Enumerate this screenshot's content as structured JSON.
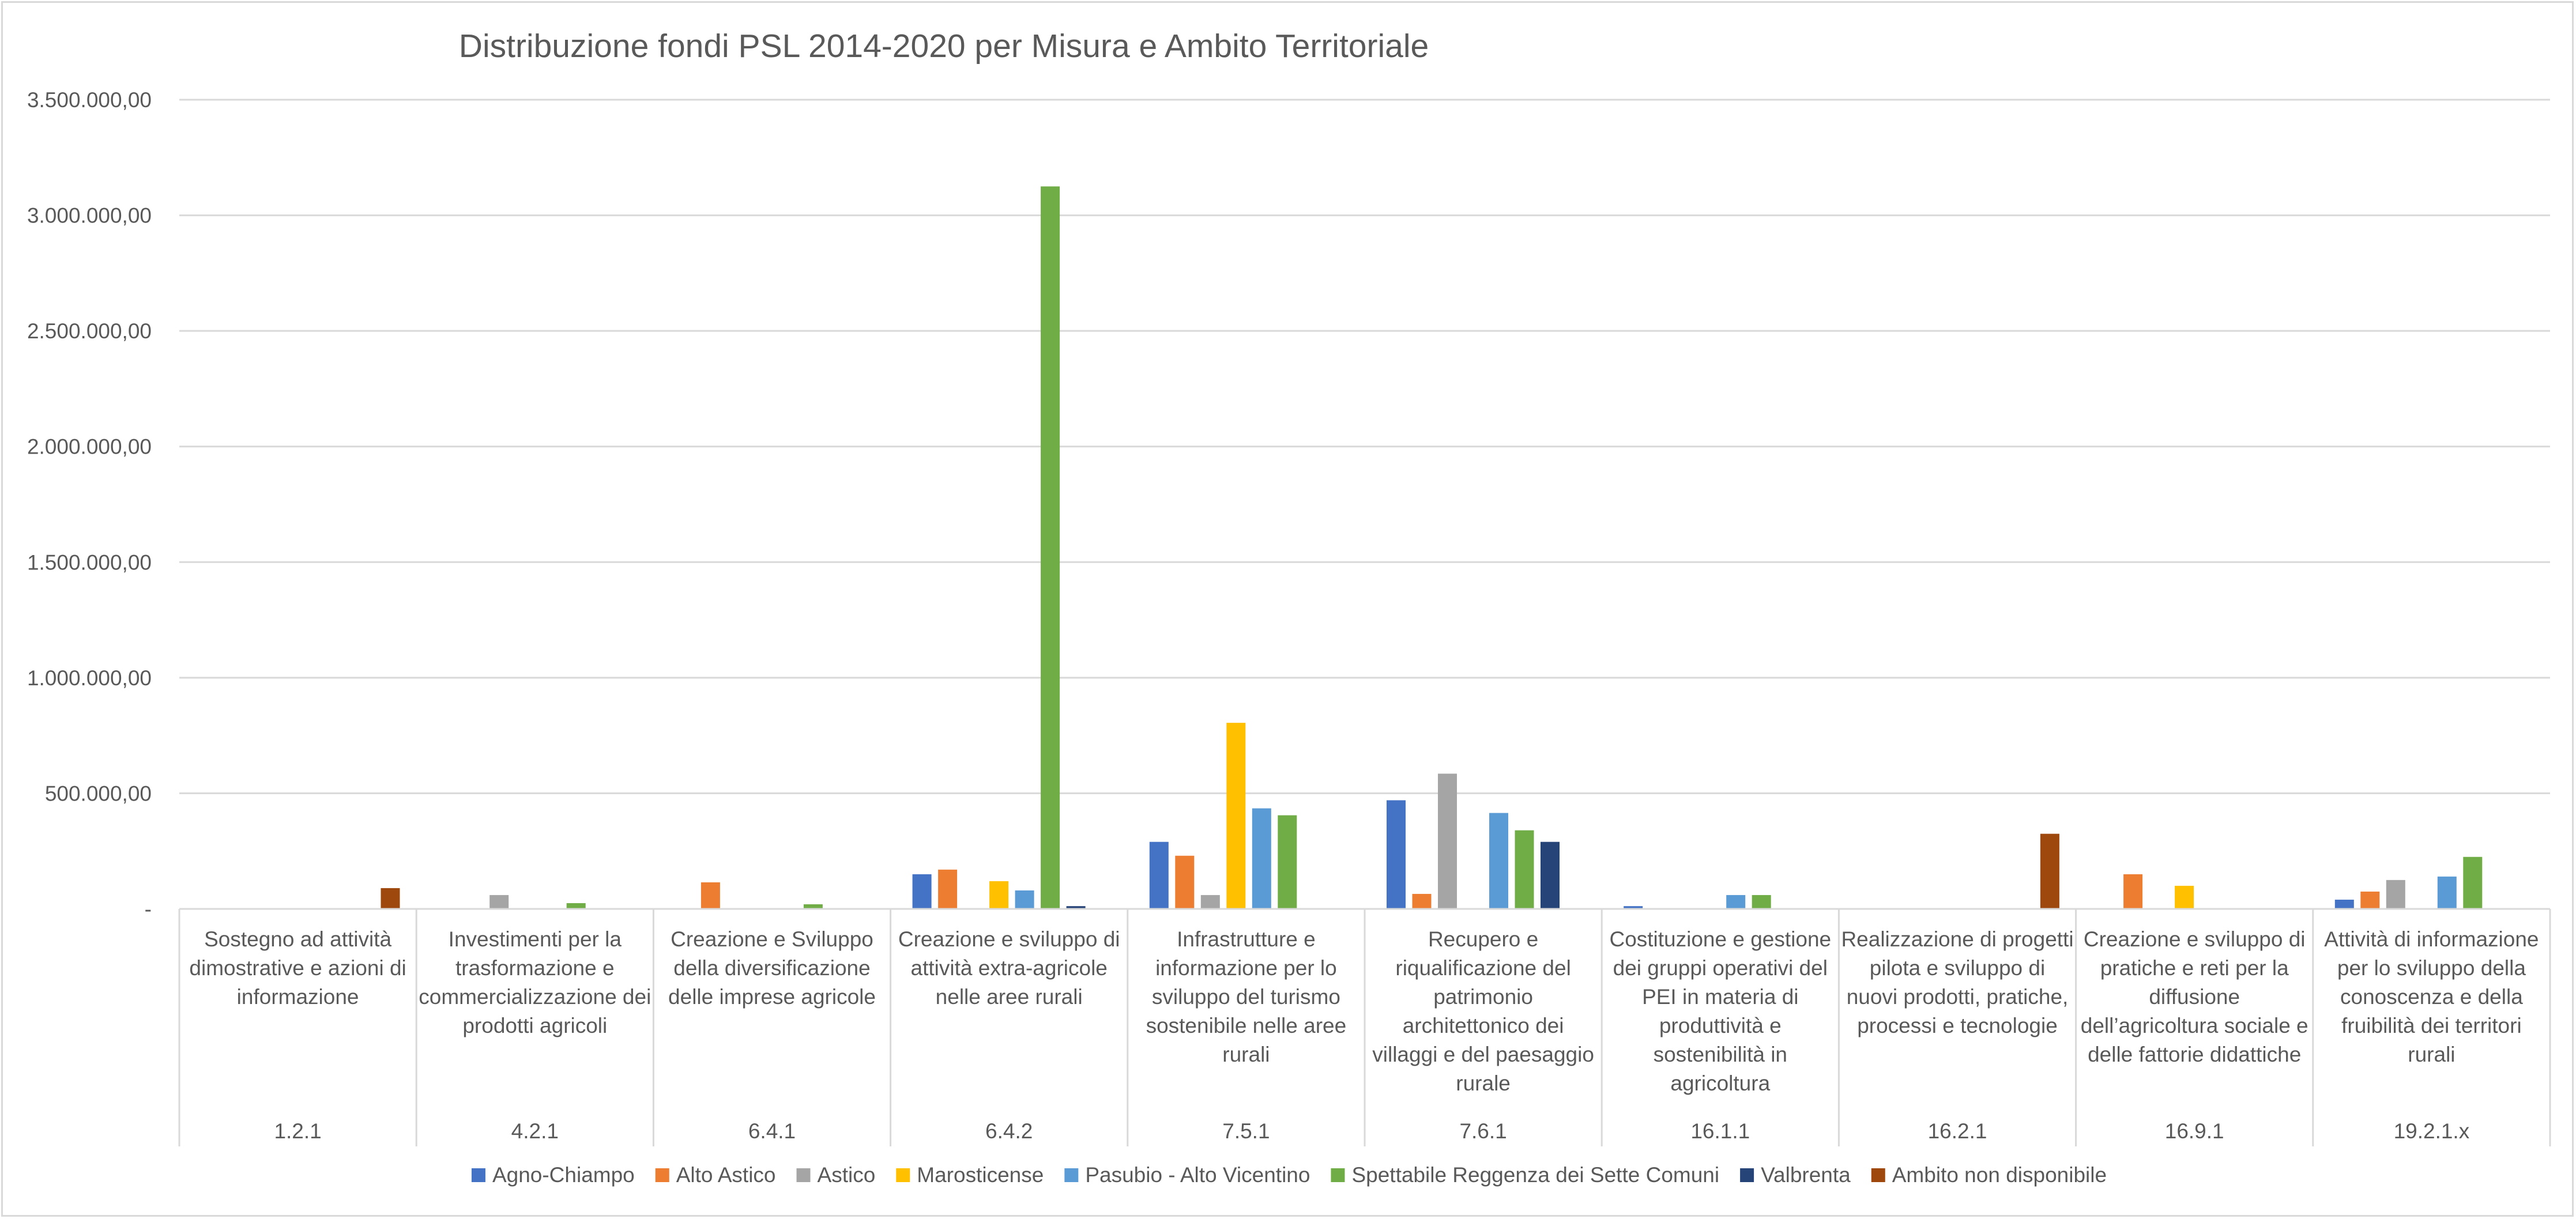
{
  "chart_data": {
    "type": "bar",
    "title": "Distribuzione fondi PSL 2014-2020 per Misura e Ambito Territoriale",
    "xlabel": "",
    "ylabel": "",
    "ylim": [
      0,
      3500000
    ],
    "yticks": [
      0,
      500000,
      1000000,
      1500000,
      2000000,
      2500000,
      3000000,
      3500000
    ],
    "ytick_labels": [
      "-",
      "500.000,00",
      "1.000.000,00",
      "1.500.000,00",
      "2.000.000,00",
      "2.500.000,00",
      "3.000.000,00",
      "3.500.000,00"
    ],
    "grid": true,
    "legend_position": "bottom",
    "categories": [
      {
        "description": [
          "Sostegno ad attività",
          "dimostrative e azioni di",
          "informazione"
        ],
        "code": "1.2.1"
      },
      {
        "description": [
          "Investimenti per la",
          "trasformazione e",
          "commercializzazione dei",
          "prodotti agricoli"
        ],
        "code": "4.2.1"
      },
      {
        "description": [
          "Creazione e Sviluppo",
          "della diversificazione",
          "delle imprese agricole"
        ],
        "code": "6.4.1"
      },
      {
        "description": [
          "Creazione e sviluppo di",
          "attività extra-agricole",
          "nelle aree rurali"
        ],
        "code": "6.4.2"
      },
      {
        "description": [
          "Infrastrutture e",
          "informazione per lo",
          "sviluppo del turismo",
          "sostenibile nelle aree",
          "rurali"
        ],
        "code": "7.5.1"
      },
      {
        "description": [
          "Recupero e",
          "riqualificazione del",
          "patrimonio",
          "architettonico dei",
          "villaggi e del paesaggio",
          "rurale"
        ],
        "code": "7.6.1"
      },
      {
        "description": [
          "Costituzione e gestione",
          "dei gruppi operativi del",
          "PEI in materia di",
          "produttività e",
          "sostenibilità in",
          "agricoltura"
        ],
        "code": "16.1.1"
      },
      {
        "description": [
          "Realizzazione di progetti",
          "pilota e sviluppo di",
          "nuovi prodotti, pratiche,",
          "processi e tecnologie"
        ],
        "code": "16.2.1"
      },
      {
        "description": [
          "Creazione e sviluppo di",
          "pratiche e reti per la",
          "diffusione",
          "dell’agricoltura sociale e",
          "delle fattorie didattiche"
        ],
        "code": "16.9.1"
      },
      {
        "description": [
          "Attività di informazione",
          "per lo sviluppo della",
          "conoscenza e della",
          "fruibilità dei territori",
          "rurali"
        ],
        "code": "19.2.1.x"
      }
    ],
    "series": [
      {
        "name": "Agno-Chiampo",
        "color": "#4472c4",
        "values": [
          0,
          0,
          0,
          150000,
          290000,
          470000,
          12000,
          0,
          0,
          40000
        ]
      },
      {
        "name": "Alto Astico",
        "color": "#ed7d31",
        "values": [
          0,
          0,
          115000,
          170000,
          230000,
          65000,
          0,
          0,
          150000,
          75000
        ]
      },
      {
        "name": "Astico",
        "color": "#a5a5a5",
        "values": [
          0,
          60000,
          0,
          0,
          60000,
          585000,
          0,
          0,
          0,
          125000
        ]
      },
      {
        "name": "Marosticense",
        "color": "#ffc000",
        "values": [
          0,
          0,
          0,
          120000,
          805000,
          0,
          0,
          0,
          100000,
          0
        ]
      },
      {
        "name": "Pasubio - Alto Vicentino",
        "color": "#5b9bd5",
        "values": [
          0,
          0,
          0,
          80000,
          435000,
          415000,
          60000,
          0,
          0,
          140000
        ]
      },
      {
        "name": "Spettabile Reggenza dei Sette Comuni",
        "color": "#70ad47",
        "values": [
          0,
          25000,
          20000,
          3125000,
          405000,
          340000,
          60000,
          0,
          0,
          225000
        ]
      },
      {
        "name": "Valbrenta",
        "color": "#264478",
        "values": [
          0,
          0,
          0,
          12000,
          0,
          290000,
          0,
          0,
          0,
          0
        ]
      },
      {
        "name": "Ambito non disponibile",
        "color": "#9e480e",
        "values": [
          90000,
          0,
          0,
          0,
          0,
          0,
          0,
          325000,
          0,
          0
        ]
      }
    ]
  }
}
